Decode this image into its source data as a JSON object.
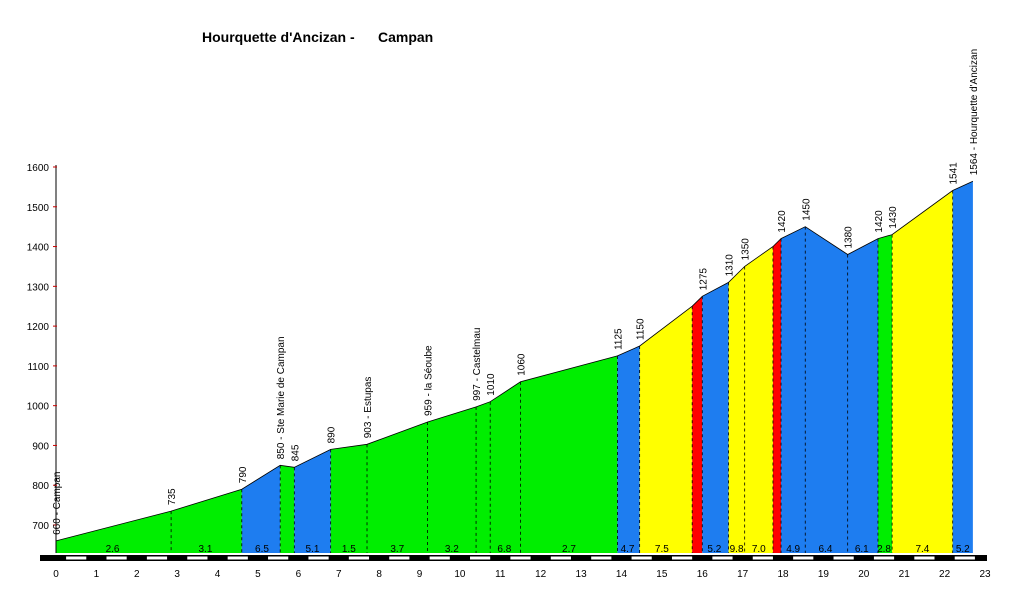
{
  "title": "Hourquette d'Ancizan -      Campan",
  "chart_data": {
    "type": "area",
    "title": "Hourquette d'Ancizan -      Campan",
    "xlabel": "",
    "ylabel": "",
    "xlim": [
      0,
      23
    ],
    "ylim": [
      625,
      1600
    ],
    "x_ticks": [
      "0",
      "1",
      "2",
      "3",
      "4",
      "5",
      "6",
      "7",
      "8",
      "9",
      "10",
      "11",
      "12",
      "13",
      "14",
      "15",
      "16",
      "17",
      "18",
      "19",
      "20",
      "21",
      "22",
      "23"
    ],
    "y_ticks": [
      "700",
      "800",
      "900",
      "1000",
      "1100",
      "1200",
      "1300",
      "1400",
      "1500",
      "1600"
    ],
    "grid": false,
    "profile": [
      {
        "x": 0,
        "y": 660
      },
      {
        "x": 2.85,
        "y": 735
      },
      {
        "x": 4.6,
        "y": 790
      },
      {
        "x": 5.55,
        "y": 850
      },
      {
        "x": 5.9,
        "y": 845
      },
      {
        "x": 6.8,
        "y": 890
      },
      {
        "x": 7.7,
        "y": 903
      },
      {
        "x": 9.2,
        "y": 959
      },
      {
        "x": 10.4,
        "y": 997
      },
      {
        "x": 10.75,
        "y": 1010
      },
      {
        "x": 11.5,
        "y": 1060
      },
      {
        "x": 13.9,
        "y": 1125
      },
      {
        "x": 14.45,
        "y": 1150
      },
      {
        "x": 15.75,
        "y": 1250
      },
      {
        "x": 16.0,
        "y": 1275
      },
      {
        "x": 16.65,
        "y": 1310
      },
      {
        "x": 17.05,
        "y": 1350
      },
      {
        "x": 17.75,
        "y": 1400
      },
      {
        "x": 17.95,
        "y": 1420
      },
      {
        "x": 18.55,
        "y": 1450
      },
      {
        "x": 19.6,
        "y": 1380
      },
      {
        "x": 20.35,
        "y": 1420
      },
      {
        "x": 20.7,
        "y": 1430
      },
      {
        "x": 22.2,
        "y": 1541
      },
      {
        "x": 22.7,
        "y": 1564
      }
    ],
    "segments": [
      {
        "x0": 0,
        "x1": 4.6,
        "color": "#00ee00"
      },
      {
        "x0": 4.6,
        "x1": 5.55,
        "color": "#1e7df0"
      },
      {
        "x0": 5.55,
        "x1": 5.9,
        "color": "#00ee00"
      },
      {
        "x0": 5.9,
        "x1": 6.8,
        "color": "#1e7df0"
      },
      {
        "x0": 6.8,
        "x1": 13.9,
        "color": "#00ee00"
      },
      {
        "x0": 13.9,
        "x1": 14.45,
        "color": "#1e7df0"
      },
      {
        "x0": 14.45,
        "x1": 15.75,
        "color": "#ffff00"
      },
      {
        "x0": 15.75,
        "x1": 16.0,
        "color": "#ff0000"
      },
      {
        "x0": 16.0,
        "x1": 16.65,
        "color": "#1e7df0"
      },
      {
        "x0": 16.65,
        "x1": 17.75,
        "color": "#ffff00"
      },
      {
        "x0": 17.75,
        "x1": 17.95,
        "color": "#ff0000"
      },
      {
        "x0": 17.95,
        "x1": 20.35,
        "color": "#1e7df0"
      },
      {
        "x0": 20.35,
        "x1": 20.7,
        "color": "#00ee00"
      },
      {
        "x0": 20.7,
        "x1": 22.2,
        "color": "#ffff00"
      },
      {
        "x0": 22.2,
        "x1": 22.7,
        "color": "#1e7df0"
      }
    ],
    "dashed_x": [
      2.85,
      4.6,
      5.55,
      5.9,
      6.8,
      7.7,
      9.2,
      10.4,
      10.75,
      11.5,
      13.9,
      14.45,
      15.75,
      16.0,
      16.65,
      17.05,
      17.75,
      17.95,
      18.55,
      19.6,
      20.35,
      20.7,
      22.2
    ],
    "elevation_labels": [
      {
        "x": 0,
        "text": "660 - Campan"
      },
      {
        "x": 2.85,
        "text": "735"
      },
      {
        "x": 4.6,
        "text": "790"
      },
      {
        "x": 5.55,
        "text": "850 - Ste Marie de Campan"
      },
      {
        "x": 5.9,
        "text": "845"
      },
      {
        "x": 6.8,
        "text": "890"
      },
      {
        "x": 7.7,
        "text": "903 - Estupas"
      },
      {
        "x": 9.2,
        "text": "959 - la Séoube"
      },
      {
        "x": 10.4,
        "text": "997 - Castelmau"
      },
      {
        "x": 10.75,
        "text": "1010"
      },
      {
        "x": 11.5,
        "text": "1060"
      },
      {
        "x": 13.9,
        "text": "1125"
      },
      {
        "x": 14.45,
        "text": "1150"
      },
      {
        "x": 16.0,
        "text": "1275"
      },
      {
        "x": 16.65,
        "text": "1310"
      },
      {
        "x": 17.05,
        "text": "1350"
      },
      {
        "x": 17.95,
        "text": "1420"
      },
      {
        "x": 18.55,
        "text": "1450"
      },
      {
        "x": 19.6,
        "text": "1380"
      },
      {
        "x": 20.35,
        "text": "1420"
      },
      {
        "x": 20.7,
        "text": "1430"
      },
      {
        "x": 22.2,
        "text": "1541"
      },
      {
        "x": 22.7,
        "text": "1564 - Hourquette d'Ancizan"
      }
    ],
    "gradient_labels": [
      {
        "x": 1.4,
        "text": "2.6"
      },
      {
        "x": 3.7,
        "text": "3.1"
      },
      {
        "x": 5.1,
        "text": "6.5"
      },
      {
        "x": 6.35,
        "text": "5.1"
      },
      {
        "x": 7.25,
        "text": "1.5"
      },
      {
        "x": 8.45,
        "text": "3.7"
      },
      {
        "x": 9.8,
        "text": "3.2"
      },
      {
        "x": 11.1,
        "text": "6.8"
      },
      {
        "x": 12.7,
        "text": "2.7"
      },
      {
        "x": 14.15,
        "text": "4.7"
      },
      {
        "x": 15.0,
        "text": "7.5"
      },
      {
        "x": 16.3,
        "text": "5.2"
      },
      {
        "x": 16.85,
        "text": "9.8"
      },
      {
        "x": 17.4,
        "text": "7.0"
      },
      {
        "x": 18.25,
        "text": "4.9"
      },
      {
        "x": 19.05,
        "text": "6.4"
      },
      {
        "x": 19.95,
        "text": "6.1"
      },
      {
        "x": 20.5,
        "text": "2.8"
      },
      {
        "x": 21.45,
        "text": "7.4"
      },
      {
        "x": 22.45,
        "text": "5.2"
      }
    ]
  }
}
